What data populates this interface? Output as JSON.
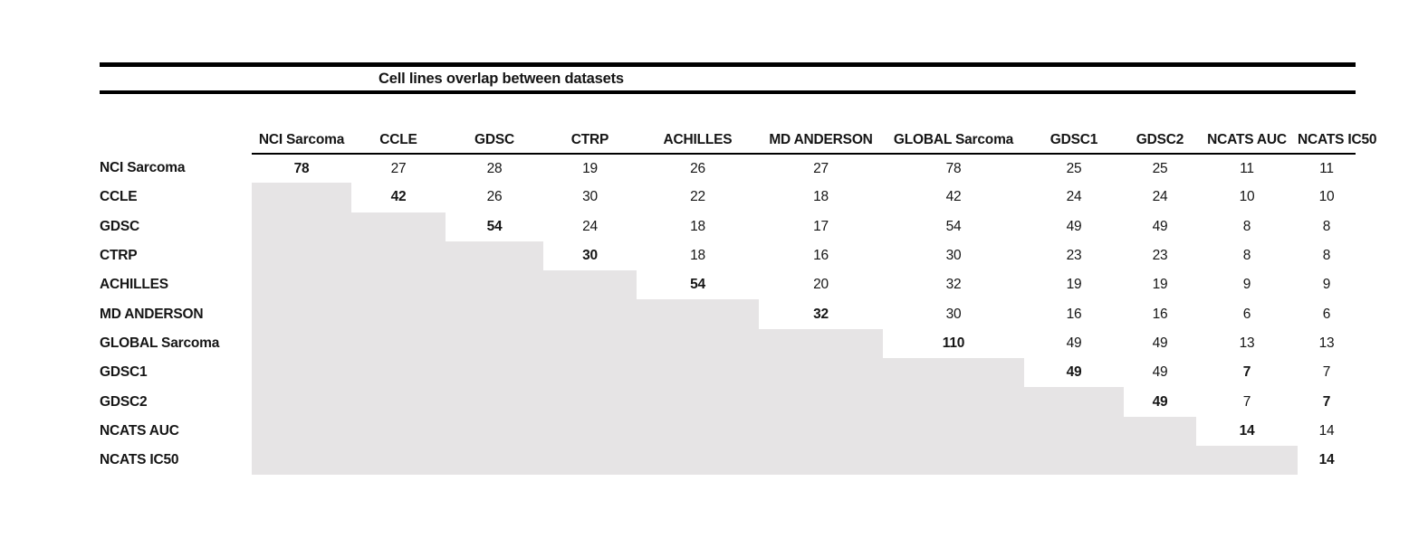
{
  "title": "Cell lines overlap between datasets",
  "colors": {
    "shaded_cell": "#e6e4e5",
    "rule": "#000000",
    "text": "#151515"
  },
  "chart_data": {
    "type": "table",
    "title": "Cell lines overlap between datasets",
    "columns": [
      "NCI Sarcoma",
      "CCLE",
      "GDSC",
      "CTRP",
      "ACHILLES",
      "MD ANDERSON",
      "GLOBAL Sarcoma",
      "GDSC1",
      "GDSC2",
      "NCATS AUC",
      "NCATS IC50"
    ],
    "rows": [
      {
        "label": "NCI Sarcoma",
        "values": [
          78,
          27,
          28,
          19,
          26,
          27,
          78,
          25,
          25,
          11,
          11
        ]
      },
      {
        "label": "CCLE",
        "values": [
          null,
          42,
          26,
          30,
          22,
          18,
          42,
          24,
          24,
          10,
          10
        ]
      },
      {
        "label": "GDSC",
        "values": [
          null,
          null,
          54,
          24,
          18,
          17,
          54,
          49,
          49,
          8,
          8
        ]
      },
      {
        "label": "CTRP",
        "values": [
          null,
          null,
          null,
          30,
          18,
          16,
          30,
          23,
          23,
          8,
          8
        ]
      },
      {
        "label": "ACHILLES",
        "values": [
          null,
          null,
          null,
          null,
          54,
          20,
          32,
          19,
          19,
          9,
          9
        ]
      },
      {
        "label": "MD ANDERSON",
        "values": [
          null,
          null,
          null,
          null,
          null,
          32,
          30,
          16,
          16,
          6,
          6
        ]
      },
      {
        "label": "GLOBAL Sarcoma",
        "values": [
          null,
          null,
          null,
          null,
          null,
          null,
          110,
          49,
          49,
          13,
          13
        ]
      },
      {
        "label": "GDSC1",
        "values": [
          null,
          null,
          null,
          null,
          null,
          null,
          null,
          49,
          49,
          7,
          7
        ]
      },
      {
        "label": "GDSC2",
        "values": [
          null,
          null,
          null,
          null,
          null,
          null,
          null,
          null,
          49,
          7,
          7
        ]
      },
      {
        "label": "NCATS AUC",
        "values": [
          null,
          null,
          null,
          null,
          null,
          null,
          null,
          null,
          null,
          14,
          14
        ]
      },
      {
        "label": "NCATS IC50",
        "values": [
          null,
          null,
          null,
          null,
          null,
          null,
          null,
          null,
          null,
          null,
          14
        ]
      }
    ],
    "diagonal_bold": true,
    "extra_bold_cells": [
      [
        7,
        9
      ],
      [
        8,
        10
      ]
    ],
    "shading": "lower-triangle cells are shaded gray and empty",
    "layout": {
      "grid": "off",
      "header_underline": true,
      "title_rules": "thick top and bottom"
    }
  }
}
